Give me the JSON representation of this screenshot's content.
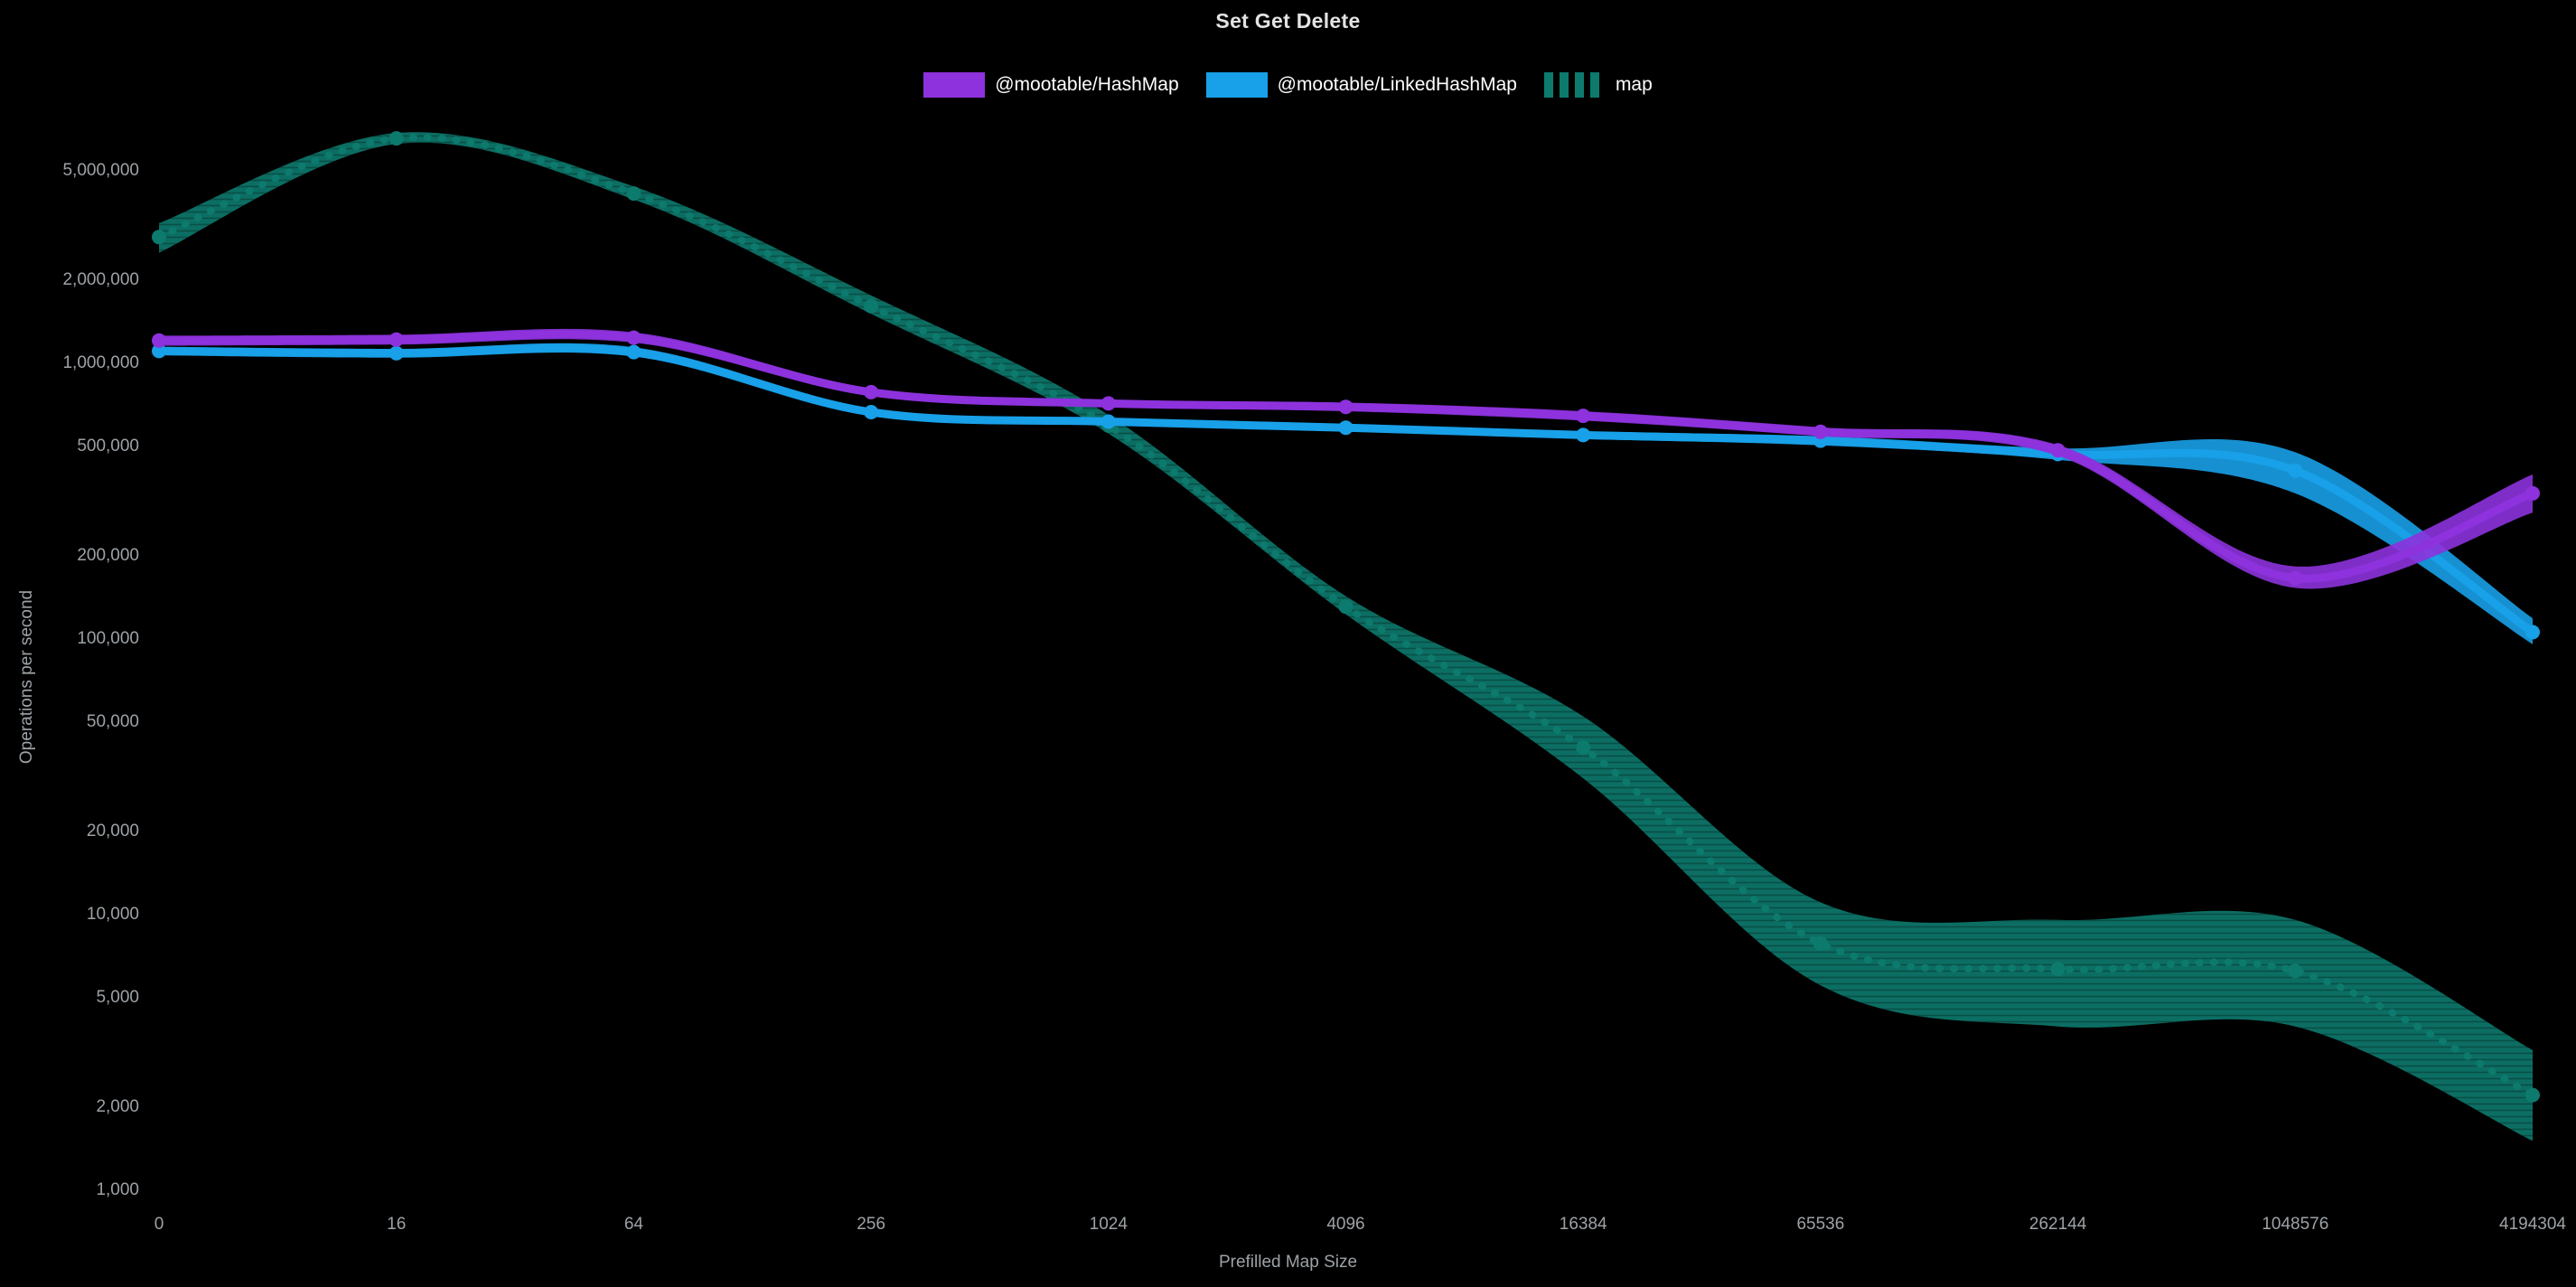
{
  "colors": {
    "background": "#000000",
    "text_primary": "#e3e3e3",
    "text_muted": "#9da2a6",
    "hashmap_purple": "#8d32dd",
    "linkedhashmap_blue": "#18a0e8",
    "map_teal": "#0d7a6e"
  },
  "chart_data": {
    "type": "line",
    "title": "Set Get Delete",
    "xlabel": "Prefilled Map Size",
    "ylabel": "Operations per second",
    "y_scale": "log",
    "grid": false,
    "legend_position": "top",
    "categories": [
      "0",
      "16",
      "64",
      "256",
      "1024",
      "4096",
      "16384",
      "65536",
      "262144",
      "1048576",
      "4194304"
    ],
    "y_ticks": [
      {
        "value": 1000,
        "label": "1,000"
      },
      {
        "value": 2000,
        "label": "2,000"
      },
      {
        "value": 5000,
        "label": "5,000"
      },
      {
        "value": 10000,
        "label": "10,000"
      },
      {
        "value": 20000,
        "label": "20,000"
      },
      {
        "value": 50000,
        "label": "50,000"
      },
      {
        "value": 100000,
        "label": "100,000"
      },
      {
        "value": 200000,
        "label": "200,000"
      },
      {
        "value": 500000,
        "label": "500,000"
      },
      {
        "value": 1000000,
        "label": "1,000,000"
      },
      {
        "value": 2000000,
        "label": "2,000,000"
      },
      {
        "value": 5000000,
        "label": "5,000,000"
      }
    ],
    "y_range": [
      1000,
      5000000
    ],
    "series": [
      {
        "name": "@mootable/HashMap",
        "color": "#8d32dd",
        "line_style": "solid",
        "values": [
          1200000,
          1210000,
          1230000,
          780000,
          710000,
          690000,
          640000,
          560000,
          480000,
          165000,
          335000
        ],
        "band_low": [
          1150000,
          1160000,
          1180000,
          755000,
          690000,
          665000,
          615000,
          540000,
          458000,
          152000,
          285000
        ],
        "band_high": [
          1250000,
          1260000,
          1285000,
          805000,
          730000,
          715000,
          665000,
          582000,
          502000,
          182000,
          392000
        ]
      },
      {
        "name": "@mootable/LinkedHashMap",
        "color": "#18a0e8",
        "line_style": "solid",
        "values": [
          1100000,
          1080000,
          1090000,
          660000,
          610000,
          580000,
          545000,
          520000,
          465000,
          405000,
          105000
        ],
        "band_low": [
          1060000,
          1040000,
          1050000,
          640000,
          595000,
          562000,
          528000,
          500000,
          443000,
          335000,
          95000
        ],
        "band_high": [
          1140000,
          1120000,
          1135000,
          682000,
          628000,
          598000,
          562000,
          540000,
          488000,
          472000,
          118000
        ]
      },
      {
        "name": "map",
        "color": "#0d7a6e",
        "line_style": "dotted",
        "values": [
          2850000,
          6500000,
          4100000,
          1600000,
          590000,
          130000,
          40000,
          7800,
          6300,
          6200,
          2200
        ],
        "band_low": [
          2500000,
          6200000,
          3900000,
          1500000,
          552000,
          122000,
          31000,
          5500,
          3900,
          3900,
          1500
        ],
        "band_high": [
          3200000,
          6800000,
          4350000,
          1750000,
          645000,
          142000,
          52000,
          11000,
          9500,
          9500,
          3200
        ]
      }
    ]
  }
}
